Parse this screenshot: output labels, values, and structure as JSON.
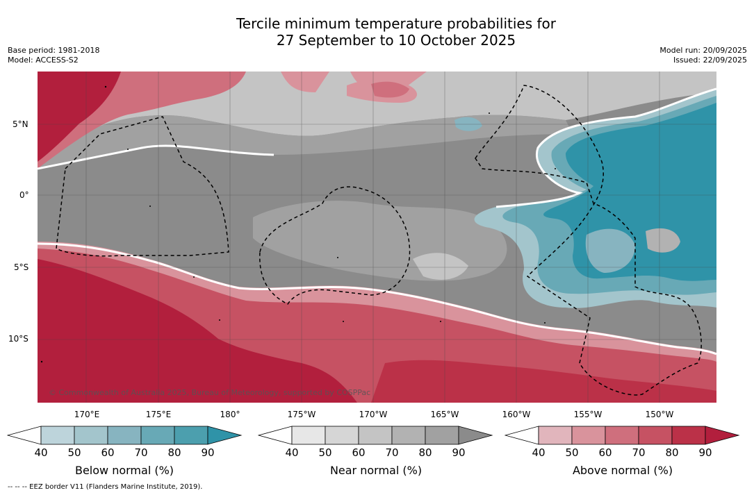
{
  "header": {
    "title_line1": "Tercile minimum temperature probabilities for",
    "title_line2": "27 September to 10 October 2025",
    "base_period": "Base period: 1981-2018",
    "model": "Model: ACCESS-S2",
    "model_run": "Model run: 20/09/2025",
    "issued": "Issued: 22/09/2025"
  },
  "map": {
    "lat_labels": [
      "5°N",
      "0°",
      "5°S",
      "10°S"
    ],
    "lon_labels": [
      "170°E",
      "175°E",
      "180°",
      "175°W",
      "170°W",
      "165°W",
      "160°W",
      "155°W",
      "150°W"
    ],
    "copyright": "© Commonwealth of Australia 2025, Bureau of Meteorology, supported by COSPPac"
  },
  "colorbars": [
    {
      "title": "Below normal (%)",
      "ticks": [
        "40",
        "50",
        "60",
        "70",
        "80",
        "90"
      ],
      "colors": [
        "#bdd4db",
        "#a3c5cc",
        "#87b4c0",
        "#68a9b6",
        "#4c9fae",
        "#2f93a8"
      ]
    },
    {
      "title": "Near normal (%)",
      "ticks": [
        "40",
        "50",
        "60",
        "70",
        "80",
        "90"
      ],
      "colors": [
        "#e7e7e7",
        "#d6d6d6",
        "#c4c4c4",
        "#b2b2b2",
        "#a1a1a1",
        "#8b8b8b"
      ]
    },
    {
      "title": "Above normal (%)",
      "ticks": [
        "40",
        "50",
        "60",
        "70",
        "80",
        "90"
      ],
      "colors": [
        "#e1b5bc",
        "#d9939c",
        "#cf6f7d",
        "#c65263",
        "#bb3148",
        "#b21f3d"
      ]
    }
  ],
  "footer": {
    "eez_note": "--  --  -- EEZ border V11 (Flanders Marine Institute, 2019)."
  }
}
